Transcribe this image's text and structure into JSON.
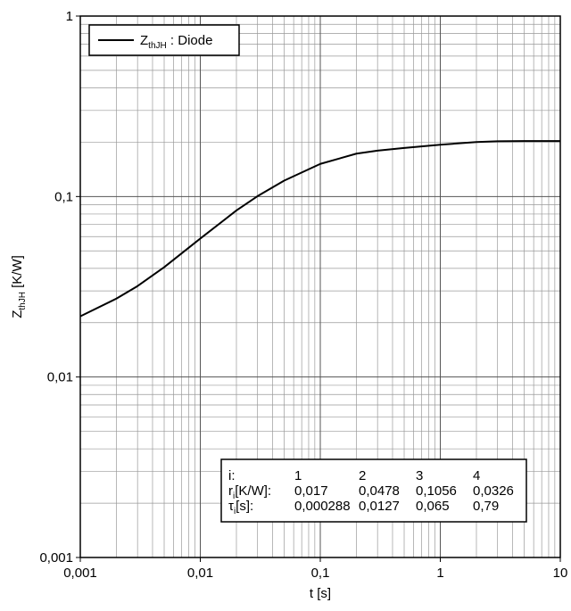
{
  "chart_data": {
    "type": "line",
    "x_label": "t [s]",
    "y_label": {
      "main": "Z",
      "sub": "thJH",
      "rest": " [K/W]"
    },
    "xscale": "log",
    "yscale": "log",
    "xlim": [
      0.001,
      10
    ],
    "ylim": [
      0.001,
      1
    ],
    "xticks": [
      {
        "value": 0.001,
        "label": "0,001"
      },
      {
        "value": 0.01,
        "label": "0,01"
      },
      {
        "value": 0.1,
        "label": "0,1"
      },
      1,
      10
    ],
    "yticks": [
      {
        "value": 0.001,
        "label": "0,001"
      },
      {
        "value": 0.01,
        "label": "0,01"
      },
      {
        "value": 0.1,
        "label": "0,1"
      },
      1
    ],
    "grid": true,
    "minor_grid": true,
    "legend": "upper left",
    "x": [
      0.001,
      0.002,
      0.003,
      0.005,
      0.01,
      0.02,
      0.03,
      0.05,
      0.1,
      0.2,
      0.3,
      0.5,
      1,
      2,
      3,
      5,
      10
    ],
    "series": [
      {
        "name": {
          "main": "Z",
          "sub": "thJH",
          "rest": " : Diode"
        },
        "color": "#000000",
        "values": [
          0.0217,
          0.0272,
          0.0319,
          0.0406,
          0.0585,
          0.0837,
          0.1005,
          0.1225,
          0.1516,
          0.1728,
          0.1797,
          0.1859,
          0.1938,
          0.2004,
          0.2025,
          0.203,
          0.203
        ]
      }
    ],
    "table": {
      "rows": [
        [
          "i:",
          "1",
          "2",
          "3",
          "4"
        ],
        [
          {
            "main": "r",
            "sub": "i",
            "rest": "[K/W]:"
          },
          "0,017",
          "0,0478",
          "0,1056",
          "0,0326"
        ],
        [
          {
            "main": "τ",
            "sub": "i",
            "rest": "[s]:"
          },
          "0,000288",
          "0,0127",
          "0,065",
          "0,79"
        ]
      ]
    }
  }
}
